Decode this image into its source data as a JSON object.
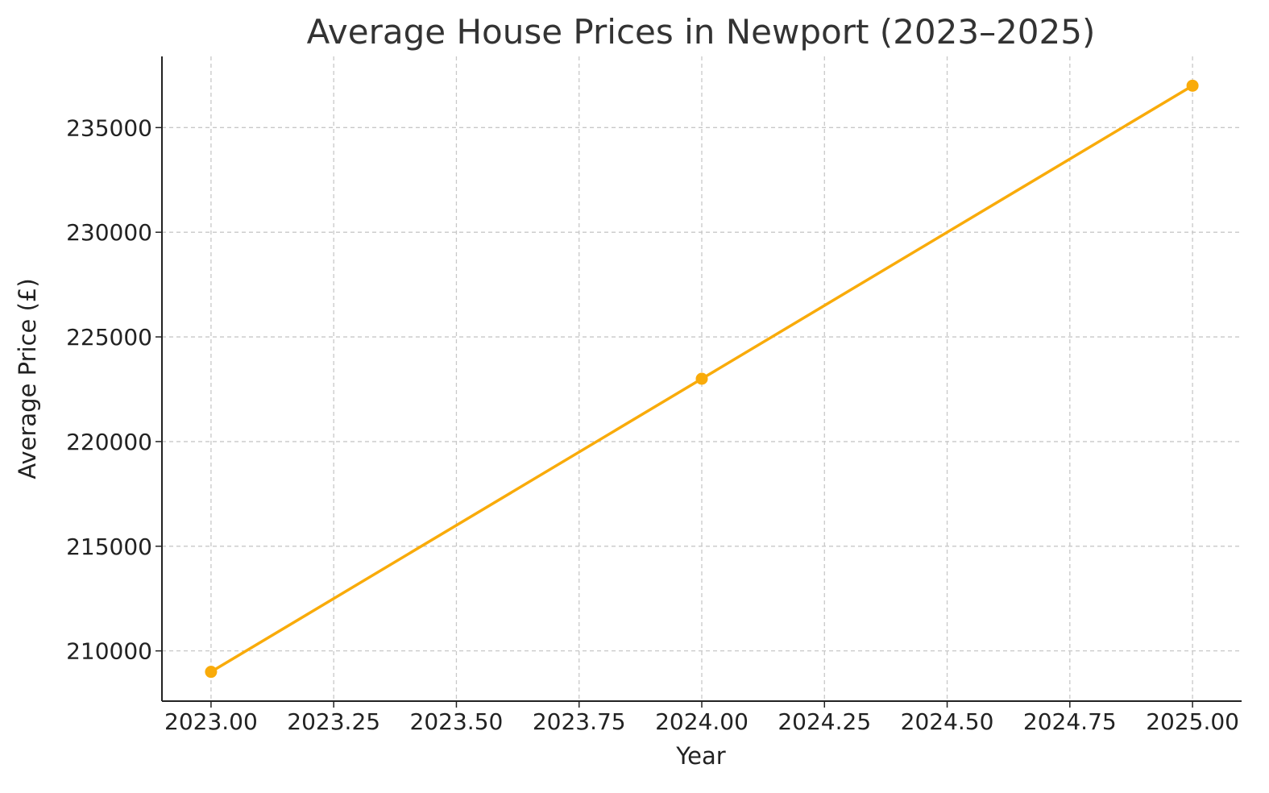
{
  "chart_data": {
    "type": "line",
    "title": "Average House Prices in Newport (2023–2025)",
    "xlabel": "Year",
    "ylabel": "Average Price (£)",
    "x": [
      2023,
      2024,
      2025
    ],
    "series": [
      {
        "values": [
          209000,
          223000,
          237000
        ],
        "color": "#f9ab0a"
      }
    ],
    "xlim": [
      2022.9,
      2025.1
    ],
    "ylim": [
      207600,
      238400
    ],
    "xticks": [
      2023.0,
      2023.25,
      2023.5,
      2023.75,
      2024.0,
      2024.25,
      2024.5,
      2024.75,
      2025.0
    ],
    "xtick_labels": [
      "2023.00",
      "2023.25",
      "2023.50",
      "2023.75",
      "2024.00",
      "2024.25",
      "2024.50",
      "2024.75",
      "2025.00"
    ],
    "yticks": [
      210000,
      215000,
      220000,
      225000,
      230000,
      235000
    ],
    "ytick_labels": [
      "210000",
      "215000",
      "220000",
      "225000",
      "230000",
      "235000"
    ],
    "grid": true,
    "legend": false
  }
}
